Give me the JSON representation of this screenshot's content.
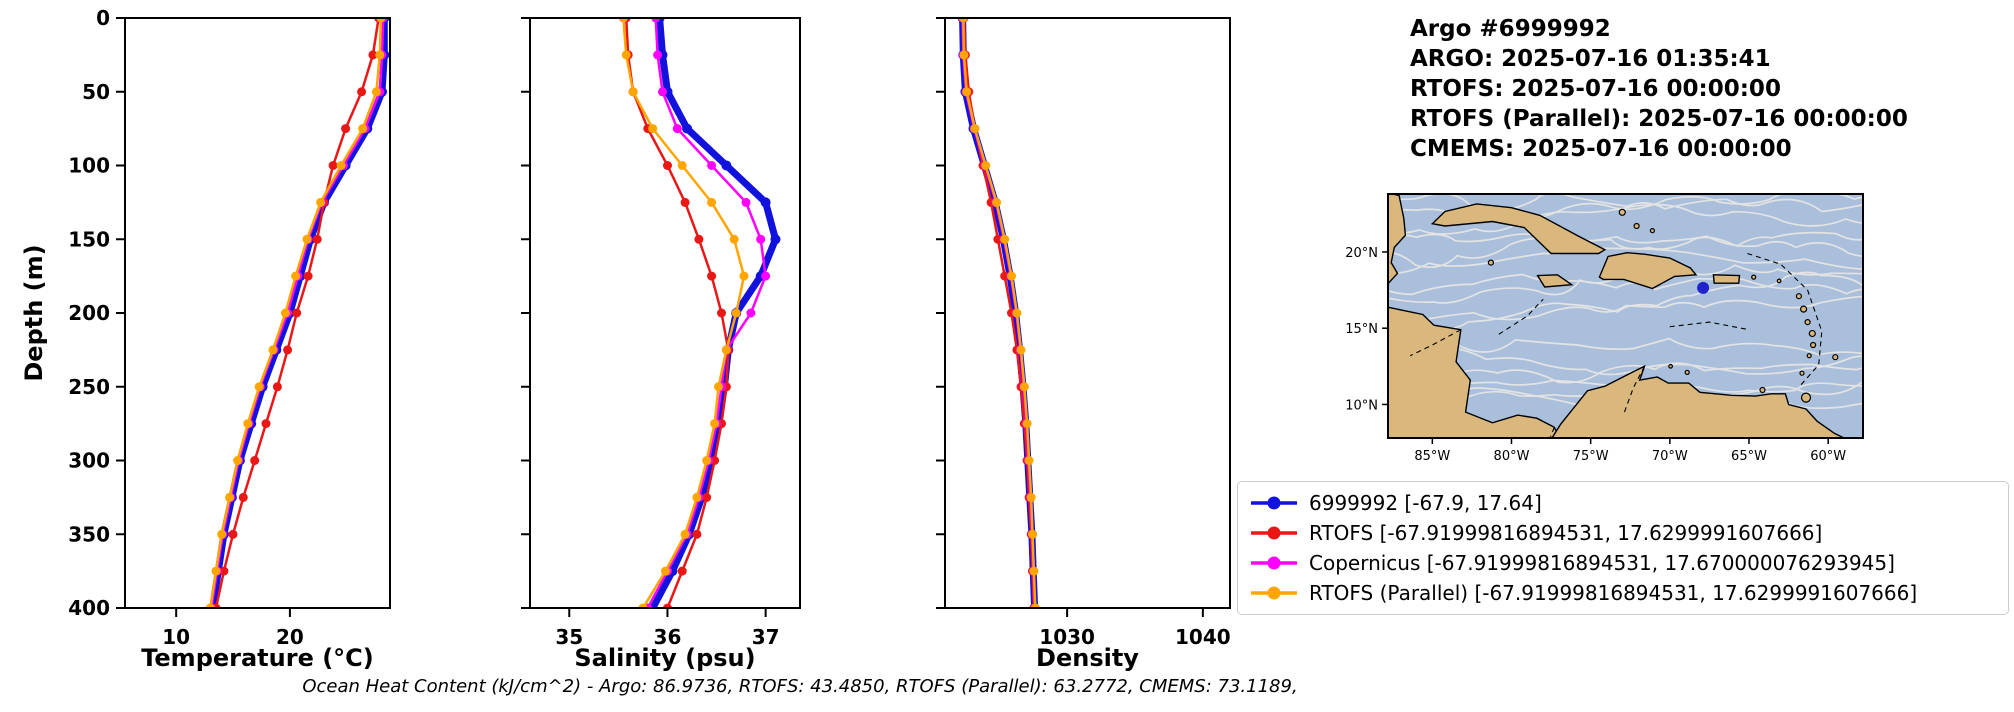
{
  "figure": {
    "title_lines": [
      "Argo #6999992",
      "ARGO:  2025-07-16 01:35:41",
      "RTOFS: 2025-07-16 00:00:00",
      "RTOFS (Parallel): 2025-07-16 00:00:00",
      "CMEMS: 2025-07-16 00:00:00"
    ],
    "caption": "Ocean Heat Content (kJ/cm^2) - Argo: 86.9736,  RTOFS: 43.4850,  RTOFS (Parallel): 63.2772,  CMEMS: 73.1189,"
  },
  "legend": {
    "items": [
      {
        "label": "6999992 [-67.9, 17.64]",
        "color": "#1212dd"
      },
      {
        "label": "RTOFS [-67.91999816894531, 17.6299991607666]",
        "color": "#ea1717"
      },
      {
        "label": "Copernicus [-67.91999816894531, 17.670000076293945]",
        "color": "#ff00ff"
      },
      {
        "label": "RTOFS (Parallel) [-67.91999816894531, 17.6299991607666]",
        "color": "#ffa500"
      }
    ]
  },
  "map": {
    "extent": {
      "lon_min": -87.8,
      "lon_max": -57.8,
      "lat_min": 7.8,
      "lat_max": 23.8
    },
    "xticks": [
      {
        "lon": -85,
        "label": "85°W"
      },
      {
        "lon": -80,
        "label": "80°W"
      },
      {
        "lon": -75,
        "label": "75°W"
      },
      {
        "lon": -70,
        "label": "70°W"
      },
      {
        "lon": -65,
        "label": "65°W"
      },
      {
        "lon": -60,
        "label": "60°W"
      }
    ],
    "yticks": [
      {
        "lat": 10,
        "label": "10°N"
      },
      {
        "lat": 15,
        "label": "15°N"
      },
      {
        "lat": 20,
        "label": "20°N"
      }
    ],
    "marker": {
      "lon": -67.9,
      "lat": 17.64,
      "color": "#2222cc"
    },
    "ocean_color": "#a9bfdc",
    "land_color": "#d9b77d"
  },
  "chart_data": [
    {
      "type": "line",
      "id": "temperature",
      "xlabel": "Temperature (°C)",
      "ylabel": "Depth (m)",
      "xlim": [
        5.5,
        28.8
      ],
      "ylim": [
        400,
        0
      ],
      "xticks": [
        10,
        20
      ],
      "xtick_labels": [
        "10",
        "20"
      ],
      "yticks": [
        0,
        50,
        100,
        150,
        200,
        250,
        300,
        350,
        400
      ],
      "depths": [
        0,
        25,
        50,
        75,
        100,
        125,
        150,
        175,
        200,
        225,
        250,
        275,
        300,
        325,
        350,
        375,
        400
      ],
      "series": [
        {
          "name": "6999992",
          "key": "argo",
          "color": "#1212dd",
          "line_width": 7,
          "marker_radius": 5,
          "values": [
            28.3,
            28.3,
            28.1,
            26.8,
            24.9,
            23.0,
            21.8,
            20.9,
            20.0,
            18.8,
            17.6,
            16.6,
            15.6,
            14.9,
            14.2,
            13.7,
            13.2
          ]
        },
        {
          "name": "RTOFS",
          "key": "rtofs",
          "color": "#ea1717",
          "line_width": 2.5,
          "marker_radius": 4.5,
          "values": [
            27.8,
            27.3,
            26.3,
            24.9,
            23.8,
            23.0,
            22.4,
            21.6,
            20.6,
            19.8,
            18.9,
            17.9,
            16.9,
            15.9,
            15.0,
            14.2,
            13.5
          ]
        },
        {
          "name": "Copernicus",
          "key": "copernicus",
          "color": "#ff00ff",
          "line_width": 2.5,
          "marker_radius": 4.5,
          "values": [
            28.2,
            28.1,
            27.9,
            26.6,
            24.7,
            22.8,
            21.6,
            20.7,
            19.8,
            18.6,
            17.4,
            16.4,
            15.5,
            14.8,
            14.1,
            13.6,
            13.1
          ]
        },
        {
          "name": "RTOFS (Parallel)",
          "key": "rtofs-parallel",
          "color": "#ffa500",
          "line_width": 2.5,
          "marker_radius": 4.5,
          "values": [
            28.0,
            27.9,
            27.6,
            26.4,
            24.5,
            22.7,
            21.5,
            20.5,
            19.6,
            18.5,
            17.3,
            16.3,
            15.4,
            14.7,
            14.0,
            13.5,
            13.0
          ]
        }
      ]
    },
    {
      "type": "line",
      "id": "salinity",
      "xlabel": "Salinity (psu)",
      "ylabel": "Depth (m)",
      "xlim": [
        34.6,
        37.35
      ],
      "ylim": [
        400,
        0
      ],
      "xticks": [
        35,
        36,
        37
      ],
      "xtick_labels": [
        "35",
        "36",
        "37"
      ],
      "yticks": [
        0,
        50,
        100,
        150,
        200,
        250,
        300,
        350,
        400
      ],
      "depths": [
        0,
        25,
        50,
        75,
        100,
        125,
        150,
        175,
        200,
        225,
        250,
        275,
        300,
        325,
        350,
        375,
        400
      ],
      "series": [
        {
          "name": "6999992",
          "key": "argo",
          "color": "#1212dd",
          "line_width": 7,
          "marker_radius": 5,
          "values": [
            35.92,
            35.95,
            36.0,
            36.2,
            36.6,
            37.0,
            37.1,
            36.95,
            36.7,
            36.62,
            36.58,
            36.52,
            36.45,
            36.35,
            36.22,
            36.05,
            35.85
          ]
        },
        {
          "name": "RTOFS",
          "key": "rtofs",
          "color": "#ea1717",
          "line_width": 2.5,
          "marker_radius": 4.5,
          "values": [
            35.58,
            35.6,
            35.65,
            35.8,
            36.0,
            36.18,
            36.32,
            36.45,
            36.55,
            36.62,
            36.6,
            36.55,
            36.48,
            36.4,
            36.3,
            36.15,
            36.0
          ]
        },
        {
          "name": "Copernicus",
          "key": "copernicus",
          "color": "#ff00ff",
          "line_width": 2.5,
          "marker_radius": 4.5,
          "values": [
            35.88,
            35.9,
            35.95,
            36.1,
            36.45,
            36.8,
            36.95,
            37.0,
            36.85,
            36.6,
            36.55,
            36.5,
            36.42,
            36.32,
            36.2,
            36.0,
            35.8
          ]
        },
        {
          "name": "RTOFS (Parallel)",
          "key": "rtofs-parallel",
          "color": "#ffa500",
          "line_width": 2.5,
          "marker_radius": 4.5,
          "values": [
            35.55,
            35.58,
            35.65,
            35.85,
            36.15,
            36.45,
            36.68,
            36.78,
            36.7,
            36.6,
            36.52,
            36.48,
            36.4,
            36.3,
            36.18,
            35.98,
            35.75
          ]
        }
      ]
    },
    {
      "type": "line",
      "id": "density",
      "xlabel": "Density",
      "ylabel": "Depth (m)",
      "xlim": [
        1021,
        1042
      ],
      "ylim": [
        400,
        0
      ],
      "xticks": [
        1030,
        1040
      ],
      "xtick_labels": [
        "1030",
        "1040"
      ],
      "yticks": [
        0,
        50,
        100,
        150,
        200,
        250,
        300,
        350,
        400
      ],
      "depths": [
        0,
        25,
        50,
        75,
        100,
        125,
        150,
        175,
        200,
        225,
        250,
        275,
        300,
        325,
        350,
        375,
        400
      ],
      "series": [
        {
          "name": "6999992",
          "key": "argo",
          "color": "#1212dd",
          "line_width": 7,
          "marker_radius": 5,
          "values": [
            1022.3,
            1022.35,
            1022.5,
            1023.1,
            1023.9,
            1024.7,
            1025.3,
            1025.8,
            1026.2,
            1026.5,
            1026.75,
            1026.95,
            1027.1,
            1027.25,
            1027.4,
            1027.5,
            1027.6
          ]
        },
        {
          "name": "RTOFS",
          "key": "rtofs",
          "color": "#ea1717",
          "line_width": 2.5,
          "marker_radius": 4.5,
          "values": [
            1022.4,
            1022.5,
            1022.75,
            1023.2,
            1023.8,
            1024.4,
            1024.9,
            1025.4,
            1025.9,
            1026.3,
            1026.6,
            1026.85,
            1027.05,
            1027.2,
            1027.35,
            1027.45,
            1027.55
          ]
        },
        {
          "name": "Copernicus",
          "key": "copernicus",
          "color": "#ff00ff",
          "line_width": 2.5,
          "marker_radius": 4.5,
          "values": [
            1022.3,
            1022.35,
            1022.55,
            1023.15,
            1023.95,
            1024.75,
            1025.35,
            1025.85,
            1026.25,
            1026.55,
            1026.8,
            1027.0,
            1027.15,
            1027.3,
            1027.42,
            1027.52,
            1027.62
          ]
        },
        {
          "name": "RTOFS (Parallel)",
          "key": "rtofs-parallel",
          "color": "#ffa500",
          "line_width": 2.5,
          "marker_radius": 4.5,
          "values": [
            1022.35,
            1022.4,
            1022.6,
            1023.2,
            1024.0,
            1024.8,
            1025.4,
            1025.9,
            1026.3,
            1026.6,
            1026.85,
            1027.05,
            1027.2,
            1027.35,
            1027.45,
            1027.55,
            1027.65
          ]
        }
      ]
    }
  ]
}
